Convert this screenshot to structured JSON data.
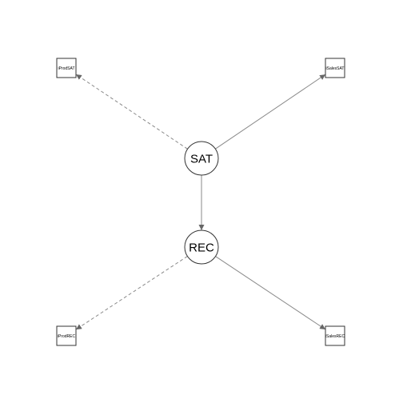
{
  "diagram": {
    "latent_nodes": [
      {
        "id": "SAT",
        "label": "SAT"
      },
      {
        "id": "REC",
        "label": "REC"
      }
    ],
    "manifest_nodes": [
      {
        "id": "iProdSAT",
        "label": "iProdSAT"
      },
      {
        "id": "iSalesSAT",
        "label": "iSalesSAT"
      },
      {
        "id": "iProdREC",
        "label": "iProdREC"
      },
      {
        "id": "iSalesREC",
        "label": "iSalesREC"
      }
    ],
    "edges": [
      {
        "from": "SAT",
        "to": "iProdSAT",
        "style": "dashed"
      },
      {
        "from": "SAT",
        "to": "iSalesSAT",
        "style": "solid"
      },
      {
        "from": "SAT",
        "to": "REC",
        "style": "solid"
      },
      {
        "from": "REC",
        "to": "iProdREC",
        "style": "dashed"
      },
      {
        "from": "REC",
        "to": "iSalesREC",
        "style": "solid"
      }
    ],
    "colors": {
      "edge": "#8a8a8a",
      "arrowhead": "#666666",
      "node_stroke": "#333333",
      "node_fill": "#ffffff"
    }
  }
}
